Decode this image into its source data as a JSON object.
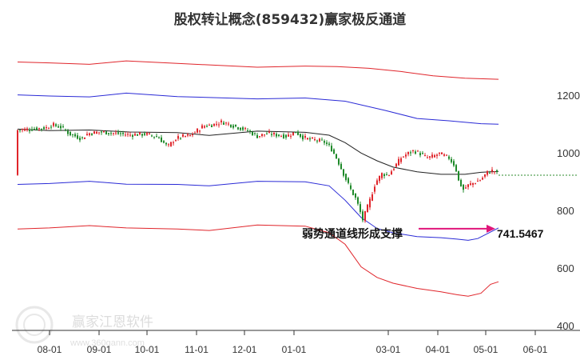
{
  "chart_data": {
    "type": "candlestick",
    "title": "股权转让概念(859432)赢家极反通道",
    "y_ticks": [
      1200,
      1000,
      800,
      600,
      400
    ],
    "ylim": [
      390,
      1290
    ],
    "x_ticks": [
      "08-01",
      "09-01",
      "10-01",
      "11-01",
      "12-01",
      "01-01",
      "03-01",
      "04-01",
      "05-01",
      "06-01"
    ],
    "x_tick_days": [
      0,
      31,
      61,
      92,
      122,
      153,
      212,
      243,
      273,
      304
    ],
    "last_day": 281,
    "grid": false,
    "annotation": {
      "text": "弱势通道线形成支撑",
      "value": "741.5467",
      "arrow_color": "#e0157a"
    },
    "last_close": 925,
    "series": [
      {
        "name": "",
        "color": "#e0252b",
        "points": [
          [
            -20,
            1318
          ],
          [
            0,
            1315
          ],
          [
            25,
            1310
          ],
          [
            48,
            1322
          ],
          [
            80,
            1313
          ],
          [
            130,
            1300
          ],
          [
            160,
            1304
          ],
          [
            180,
            1302
          ],
          [
            200,
            1296
          ],
          [
            220,
            1285
          ],
          [
            240,
            1270
          ],
          [
            260,
            1262
          ],
          [
            281,
            1258
          ]
        ]
      },
      {
        "name": "",
        "color": "#2a2ad6",
        "points": [
          [
            -20,
            1204
          ],
          [
            0,
            1200
          ],
          [
            25,
            1197
          ],
          [
            48,
            1210
          ],
          [
            80,
            1198
          ],
          [
            130,
            1190
          ],
          [
            160,
            1193
          ],
          [
            185,
            1182
          ],
          [
            210,
            1150
          ],
          [
            230,
            1122
          ],
          [
            250,
            1114
          ],
          [
            270,
            1104
          ],
          [
            281,
            1102
          ]
        ]
      },
      {
        "name": "",
        "color": "#222222",
        "points": [
          [
            -20,
            1085
          ],
          [
            0,
            1080
          ],
          [
            25,
            1082
          ],
          [
            50,
            1075
          ],
          [
            80,
            1073
          ],
          [
            100,
            1063
          ],
          [
            130,
            1078
          ],
          [
            160,
            1074
          ],
          [
            175,
            1064
          ],
          [
            185,
            1038
          ],
          [
            195,
            1002
          ],
          [
            205,
            975
          ],
          [
            215,
            953
          ],
          [
            230,
            937
          ],
          [
            245,
            928
          ],
          [
            260,
            928
          ],
          [
            270,
            935
          ],
          [
            281,
            938
          ]
        ]
      },
      {
        "name": "",
        "color": "#2a2ad6",
        "points": [
          [
            -20,
            893
          ],
          [
            0,
            896
          ],
          [
            25,
            904
          ],
          [
            48,
            894
          ],
          [
            80,
            893
          ],
          [
            100,
            888
          ],
          [
            130,
            904
          ],
          [
            160,
            902
          ],
          [
            175,
            888
          ],
          [
            185,
            838
          ],
          [
            195,
            778
          ],
          [
            205,
            740
          ],
          [
            215,
            725
          ],
          [
            230,
            712
          ],
          [
            245,
            708
          ],
          [
            255,
            703
          ],
          [
            262,
            699
          ],
          [
            268,
            705
          ],
          [
            274,
            722
          ],
          [
            281,
            742
          ]
        ]
      },
      {
        "name": "",
        "color": "#e0252b",
        "points": [
          [
            -20,
            738
          ],
          [
            0,
            742
          ],
          [
            25,
            750
          ],
          [
            48,
            742
          ],
          [
            80,
            738
          ],
          [
            100,
            733
          ],
          [
            130,
            752
          ],
          [
            160,
            748
          ],
          [
            175,
            725
          ],
          [
            185,
            685
          ],
          [
            195,
            607
          ],
          [
            205,
            570
          ],
          [
            215,
            550
          ],
          [
            230,
            532
          ],
          [
            245,
            520
          ],
          [
            255,
            510
          ],
          [
            262,
            505
          ],
          [
            270,
            515
          ],
          [
            276,
            546
          ],
          [
            281,
            555
          ]
        ]
      }
    ],
    "price_path": [
      [
        -20,
        1082
      ],
      [
        -12,
        1085
      ],
      [
        -2,
        1090
      ],
      [
        2,
        1100
      ],
      [
        8,
        1090
      ],
      [
        12,
        1070
      ],
      [
        20,
        1052
      ],
      [
        24,
        1070
      ],
      [
        32,
        1075
      ],
      [
        42,
        1070
      ],
      [
        50,
        1065
      ],
      [
        60,
        1068
      ],
      [
        68,
        1057
      ],
      [
        74,
        1023
      ],
      [
        78,
        1048
      ],
      [
        82,
        1058
      ],
      [
        88,
        1063
      ],
      [
        92,
        1078
      ],
      [
        96,
        1095
      ],
      [
        102,
        1100
      ],
      [
        108,
        1110
      ],
      [
        116,
        1095
      ],
      [
        124,
        1080
      ],
      [
        130,
        1060
      ],
      [
        136,
        1070
      ],
      [
        142,
        1065
      ],
      [
        148,
        1060
      ],
      [
        154,
        1075
      ],
      [
        158,
        1058
      ],
      [
        162,
        1050
      ],
      [
        168,
        1046
      ],
      [
        172,
        1040
      ],
      [
        176,
        1020
      ],
      [
        180,
        980
      ],
      [
        184,
        930
      ],
      [
        188,
        880
      ],
      [
        192,
        840
      ],
      [
        196,
        770
      ],
      [
        200,
        830
      ],
      [
        204,
        900
      ],
      [
        208,
        930
      ],
      [
        212,
        925
      ],
      [
        216,
        955
      ],
      [
        220,
        985
      ],
      [
        224,
        1000
      ],
      [
        228,
        1010
      ],
      [
        232,
        1000
      ],
      [
        236,
        985
      ],
      [
        240,
        990
      ],
      [
        244,
        1000
      ],
      [
        250,
        985
      ],
      [
        254,
        955
      ],
      [
        256,
        905
      ],
      [
        259,
        875
      ],
      [
        262,
        890
      ],
      [
        266,
        900
      ],
      [
        270,
        910
      ],
      [
        274,
        935
      ],
      [
        278,
        942
      ],
      [
        281,
        925
      ]
    ]
  }
}
